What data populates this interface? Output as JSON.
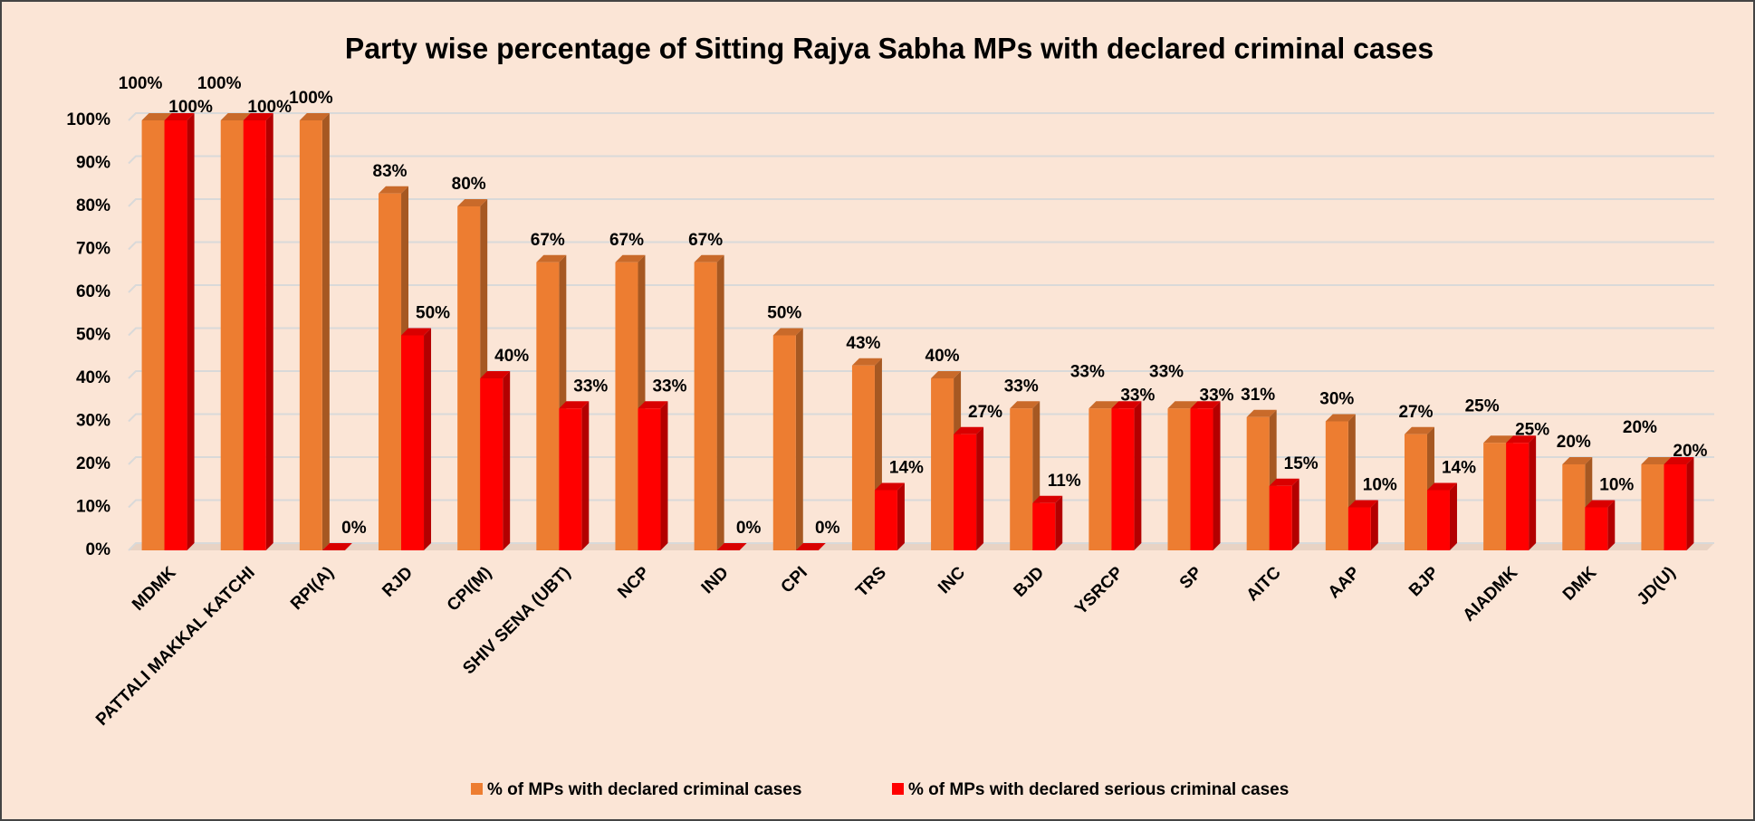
{
  "chart_data": {
    "type": "bar",
    "title": "Party wise percentage of Sitting Rajya Sabha MPs with declared criminal cases",
    "categories": [
      "MDMK",
      "PATTALI MAKKAL KATCHI",
      "RPI(A)",
      "RJD",
      "CPI(M)",
      "SHIV SENA (UBT)",
      "NCP",
      "IND",
      "CPI",
      "TRS",
      "INC",
      "BJD",
      "YSRCP",
      "SP",
      "AITC",
      "AAP",
      "BJP",
      "AIADMK",
      "DMK",
      "JD(U)"
    ],
    "series": [
      {
        "name": "% of MPs with declared criminal cases",
        "color": "#ed7d31",
        "values": [
          100,
          100,
          100,
          83,
          80,
          67,
          67,
          67,
          50,
          43,
          40,
          33,
          33,
          33,
          31,
          30,
          27,
          25,
          20,
          20
        ],
        "value_labels": [
          "100%",
          "100%",
          "100%",
          "83%",
          "80%",
          "67%",
          "67%",
          "67%",
          "50%",
          "43%",
          "40%",
          "33%",
          "33%",
          "33%",
          "31%",
          "30%",
          "27%",
          "25%",
          "20%",
          "20%"
        ]
      },
      {
        "name": "% of MPs with declared serious criminal cases",
        "color": "#ff0000",
        "values": [
          100,
          100,
          0,
          50,
          40,
          33,
          33,
          0,
          0,
          14,
          27,
          11,
          33,
          33,
          15,
          10,
          14,
          25,
          10,
          20
        ],
        "value_labels": [
          "100%",
          "100%",
          "0%",
          "50%",
          "40%",
          "33%",
          "33%",
          "0%",
          "0%",
          "14%",
          "27%",
          "11%",
          "33%",
          "33%",
          "15%",
          "10%",
          "14%",
          "25%",
          "10%",
          "20%"
        ]
      }
    ],
    "ylim": [
      0,
      100
    ],
    "yticks": [
      {
        "value": 0,
        "label": "0%"
      },
      {
        "value": 10,
        "label": "10%"
      },
      {
        "value": 20,
        "label": "20%"
      },
      {
        "value": 30,
        "label": "30%"
      },
      {
        "value": 40,
        "label": "40%"
      },
      {
        "value": 50,
        "label": "50%"
      },
      {
        "value": 60,
        "label": "60%"
      },
      {
        "value": 70,
        "label": "70%"
      },
      {
        "value": 80,
        "label": "80%"
      },
      {
        "value": 90,
        "label": "90%"
      },
      {
        "value": 100,
        "label": "100%"
      }
    ],
    "grid": true,
    "legend": "bottom"
  }
}
